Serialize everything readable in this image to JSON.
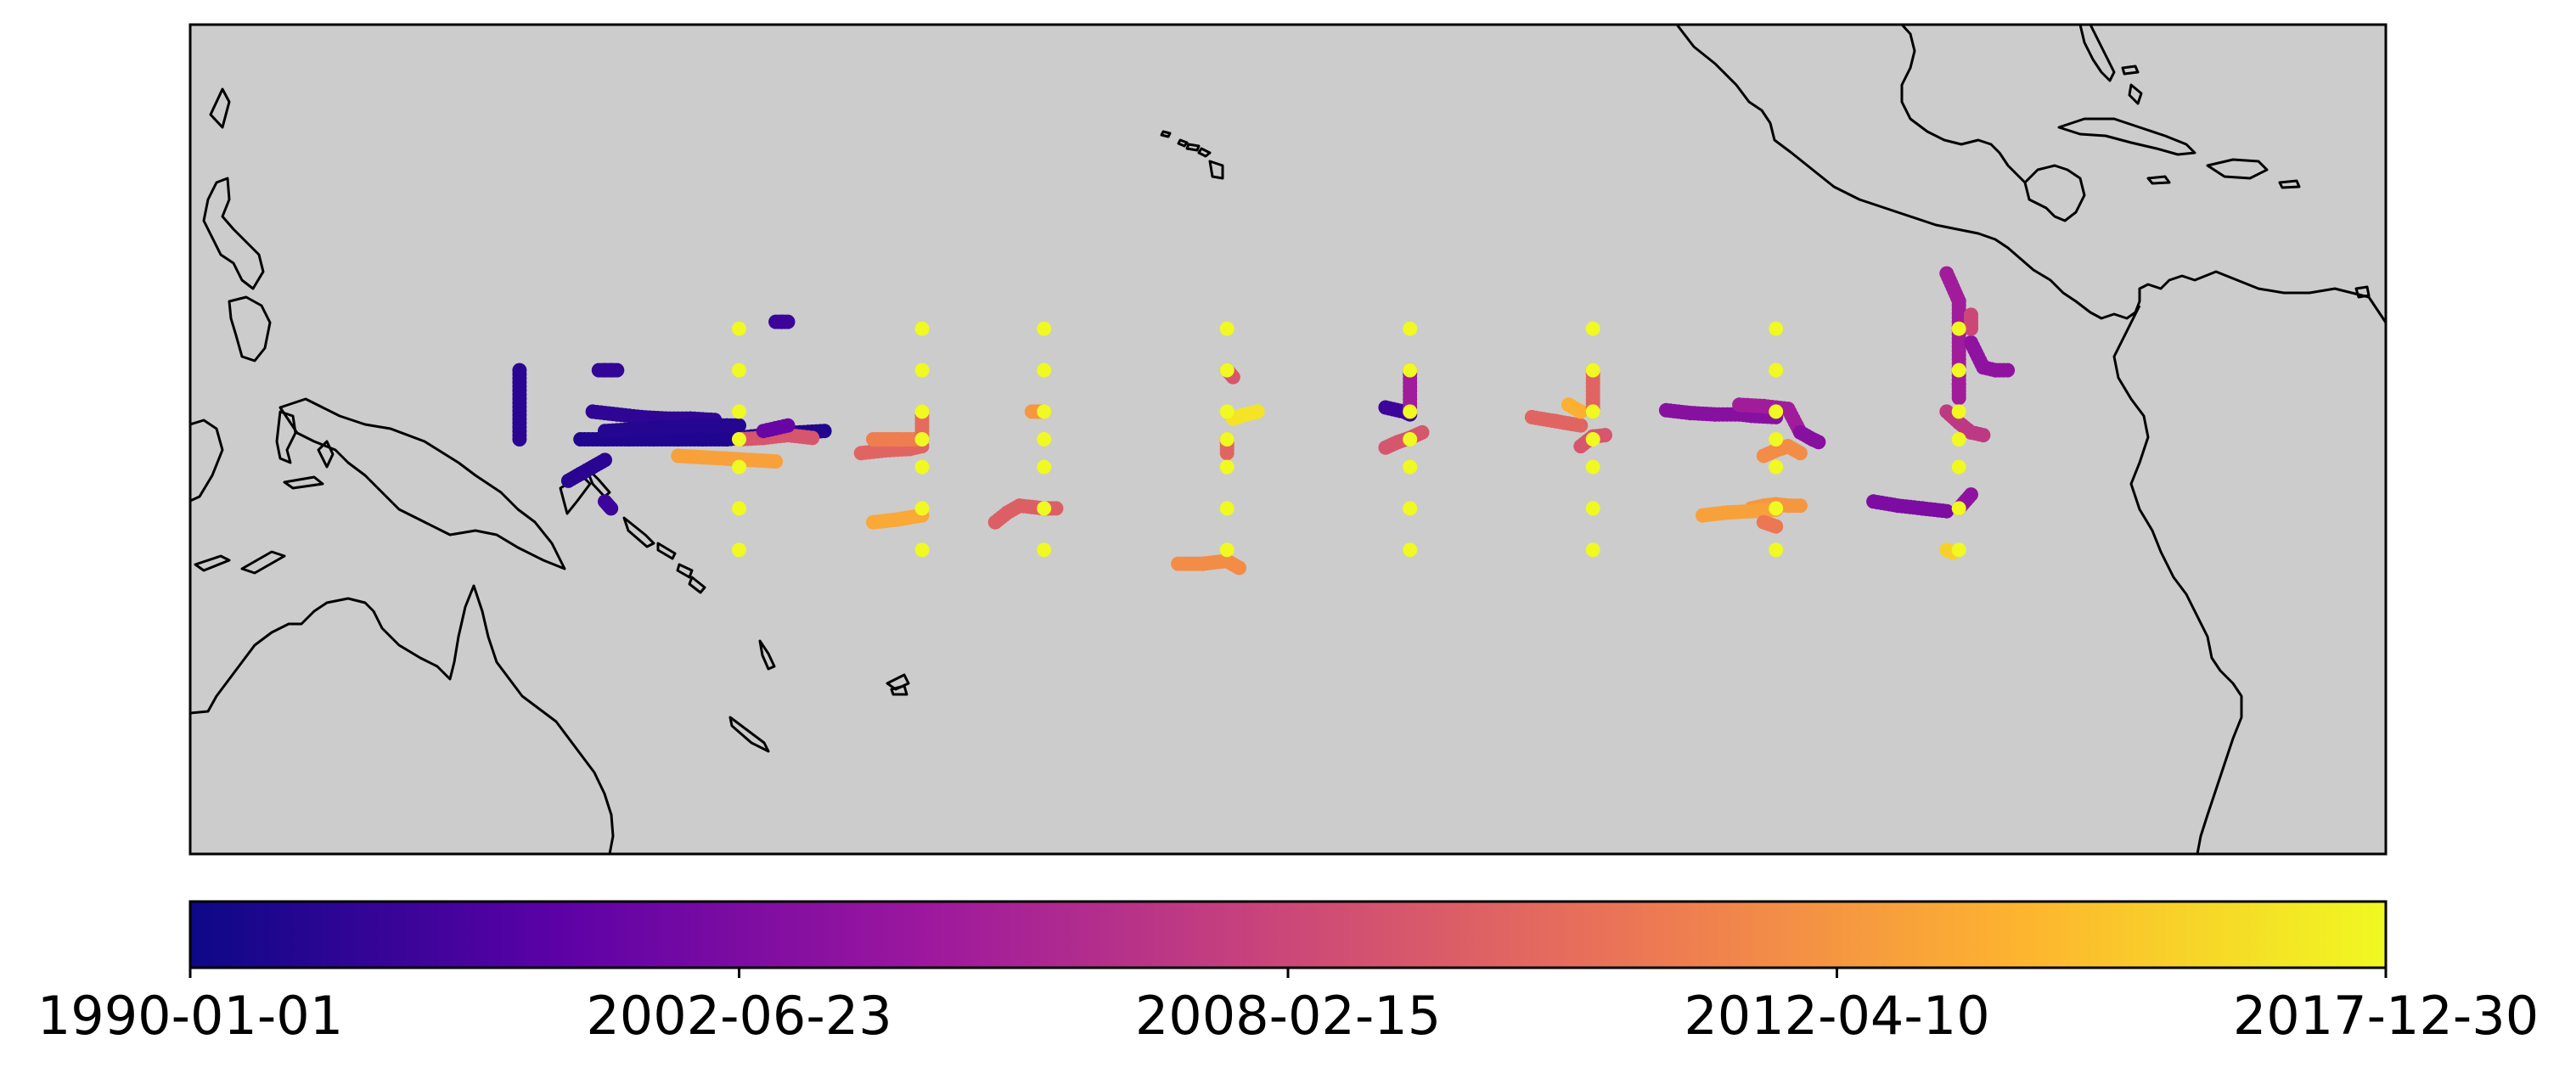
{
  "map": {
    "projection": "plate-carree",
    "extent_lon": [
      120,
      300
    ],
    "extent_lat": [
      -30,
      30
    ],
    "ocean_color": "#cccccc",
    "coast_color": "#000000",
    "marker_color_map": "plasma"
  },
  "colorbar": {
    "colormap": "plasma",
    "stops": [
      "#0d0887",
      "#5c01a6",
      "#9c179e",
      "#cc4778",
      "#ed7953",
      "#fdb42f",
      "#f0f921"
    ],
    "ticks": [
      "1990-01-01",
      "2002-06-23",
      "2008-02-15",
      "2012-04-10",
      "2017-12-30"
    ]
  },
  "chart_data": {
    "type": "scatter",
    "title": "",
    "xlabel": "",
    "ylabel": "",
    "x_unit": "degrees longitude (0-360)",
    "y_unit": "degrees latitude",
    "color_value": "time (0 = 1990-01-01, 1 = 2017-12-30)",
    "moorings": {
      "longitudes": [
        165,
        180,
        190,
        205,
        220,
        235,
        250,
        265
      ],
      "latitudes": [
        -8,
        -5,
        -2,
        0,
        2,
        5,
        8
      ],
      "time": 1.0
    },
    "tracks": [
      {
        "lon": [
          147,
          147
        ],
        "lat": [
          5,
          0
        ],
        "time": 0.06
      },
      {
        "lon": [
          153.5,
          154,
          154.5,
          155
        ],
        "lat": [
          5,
          5,
          5,
          5
        ],
        "time": 0.08
      },
      {
        "lon": [
          152,
          154,
          156,
          158,
          160,
          162,
          164,
          166,
          168,
          170,
          172
        ],
        "lat": [
          0,
          0,
          0,
          0,
          0,
          0,
          0,
          0.2,
          0.4,
          0.5,
          0.6
        ],
        "time": 0.04
      },
      {
        "lon": [
          153,
          155,
          157,
          159,
          161,
          163
        ],
        "lat": [
          2,
          1.8,
          1.6,
          1.5,
          1.5,
          1.4
        ],
        "time": 0.07
      },
      {
        "lon": [
          154,
          156,
          158,
          160,
          162,
          164,
          165
        ],
        "lat": [
          0.6,
          0.7,
          0.8,
          0.9,
          1,
          1,
          1
        ],
        "time": 0.05
      },
      {
        "lon": [
          151,
          152,
          153,
          154
        ],
        "lat": [
          -3,
          -2.5,
          -2,
          -1.5
        ],
        "time": 0.06
      },
      {
        "lon": [
          154,
          154.5
        ],
        "lat": [
          -4.5,
          -5
        ],
        "time": 0.1
      },
      {
        "lon": [
          160,
          162,
          164,
          166,
          168
        ],
        "lat": [
          -1.2,
          -1.3,
          -1.4,
          -1.5,
          -1.6
        ],
        "time": 0.78
      },
      {
        "lon": [
          165,
          167,
          169,
          171
        ],
        "lat": [
          0,
          0.1,
          0.3,
          0.1
        ],
        "time": 0.55
      },
      {
        "lon": [
          168,
          168.5,
          169
        ],
        "lat": [
          8.5,
          8.5,
          8.5
        ],
        "time": 0.1
      },
      {
        "lon": [
          167,
          168,
          169
        ],
        "lat": [
          0.6,
          0.8,
          1
        ],
        "time": 0.2
      },
      {
        "lon": [
          175,
          177,
          179,
          180
        ],
        "lat": [
          -1,
          -0.8,
          -0.7,
          -0.5
        ],
        "time": 0.6
      },
      {
        "lon": [
          176,
          178,
          180
        ],
        "lat": [
          0,
          0,
          0
        ],
        "time": 0.68
      },
      {
        "lon": [
          176,
          178,
          180
        ],
        "lat": [
          -6,
          -5.8,
          -5.5
        ],
        "time": 0.8
      },
      {
        "lon": [
          180,
          180
        ],
        "lat": [
          2,
          0
        ],
        "time": 0.62
      },
      {
        "lon": [
          186,
          187,
          188,
          189,
          190,
          191
        ],
        "lat": [
          -6,
          -5.3,
          -4.8,
          -4.9,
          -5,
          -5
        ],
        "time": 0.58
      },
      {
        "lon": [
          189,
          189.5,
          190
        ],
        "lat": [
          2,
          2,
          2
        ],
        "time": 0.75
      },
      {
        "lon": [
          201,
          203,
          205,
          206
        ],
        "lat": [
          -9,
          -9,
          -8.8,
          -9.3
        ],
        "time": 0.72
      },
      {
        "lon": [
          205,
          205.5
        ],
        "lat": [
          5,
          4.5
        ],
        "time": 0.55
      },
      {
        "lon": [
          205,
          205
        ],
        "lat": [
          0,
          -1
        ],
        "time": 0.6
      },
      {
        "lon": [
          205.5,
          206.5,
          207.5
        ],
        "lat": [
          1.5,
          1.8,
          2
        ],
        "time": 0.95
      },
      {
        "lon": [
          218,
          219.5,
          220
        ],
        "lat": [
          2.3,
          2,
          1.8
        ],
        "time": 0.1
      },
      {
        "lon": [
          218,
          219,
          220,
          221
        ],
        "lat": [
          -0.6,
          -0.2,
          0.1,
          0.5
        ],
        "time": 0.55
      },
      {
        "lon": [
          220,
          220
        ],
        "lat": [
          5,
          2
        ],
        "time": 0.35
      },
      {
        "lon": [
          230,
          232,
          234
        ],
        "lat": [
          1.6,
          1.3,
          1
        ],
        "time": 0.6
      },
      {
        "lon": [
          234,
          235,
          236
        ],
        "lat": [
          -0.5,
          0.2,
          0.3
        ],
        "time": 0.55
      },
      {
        "lon": [
          233,
          234
        ],
        "lat": [
          2.5,
          2
        ],
        "time": 0.82
      },
      {
        "lon": [
          235,
          235
        ],
        "lat": [
          5,
          2
        ],
        "time": 0.6
      },
      {
        "lon": [
          241,
          243,
          245,
          247,
          248,
          250
        ],
        "lat": [
          2.1,
          1.9,
          1.8,
          1.8,
          1.7,
          1.6
        ],
        "time": 0.28
      },
      {
        "lon": [
          247,
          249,
          251,
          252
        ],
        "lat": [
          2.5,
          2.4,
          2.2,
          0.5
        ],
        "time": 0.35
      },
      {
        "lon": [
          252,
          253,
          253.5
        ],
        "lat": [
          0.5,
          0,
          -0.2
        ],
        "time": 0.28
      },
      {
        "lon": [
          249,
          250,
          251,
          252
        ],
        "lat": [
          -1.2,
          -0.8,
          -0.5,
          -1
        ],
        "time": 0.72
      },
      {
        "lon": [
          248,
          249,
          250,
          251,
          252
        ],
        "lat": [
          -5,
          -4.8,
          -4.7,
          -4.8,
          -4.8
        ],
        "time": 0.75
      },
      {
        "lon": [
          244,
          246,
          248,
          250
        ],
        "lat": [
          -5.5,
          -5.3,
          -5.2,
          -5.1
        ],
        "time": 0.78
      },
      {
        "lon": [
          249,
          250
        ],
        "lat": [
          -6,
          -6.3
        ],
        "time": 0.66
      },
      {
        "lon": [
          264,
          265,
          265,
          265
        ],
        "lat": [
          12,
          10,
          4,
          3
        ],
        "time": 0.35
      },
      {
        "lon": [
          266,
          267,
          268,
          269
        ],
        "lat": [
          7,
          5.2,
          5,
          5
        ],
        "time": 0.3
      },
      {
        "lon": [
          264,
          265,
          266,
          267
        ],
        "lat": [
          2,
          1.2,
          0.5,
          0.3
        ],
        "time": 0.45
      },
      {
        "lon": [
          258,
          260,
          262,
          264
        ],
        "lat": [
          -4.5,
          -4.8,
          -5,
          -5.2
        ],
        "time": 0.25
      },
      {
        "lon": [
          265,
          266
        ],
        "lat": [
          -5,
          -4
        ],
        "time": 0.3
      },
      {
        "lon": [
          264,
          264.5
        ],
        "lat": [
          -8,
          -8.2
        ],
        "time": 0.9
      },
      {
        "lon": [
          266,
          266
        ],
        "lat": [
          9,
          8
        ],
        "time": 0.5
      }
    ]
  }
}
